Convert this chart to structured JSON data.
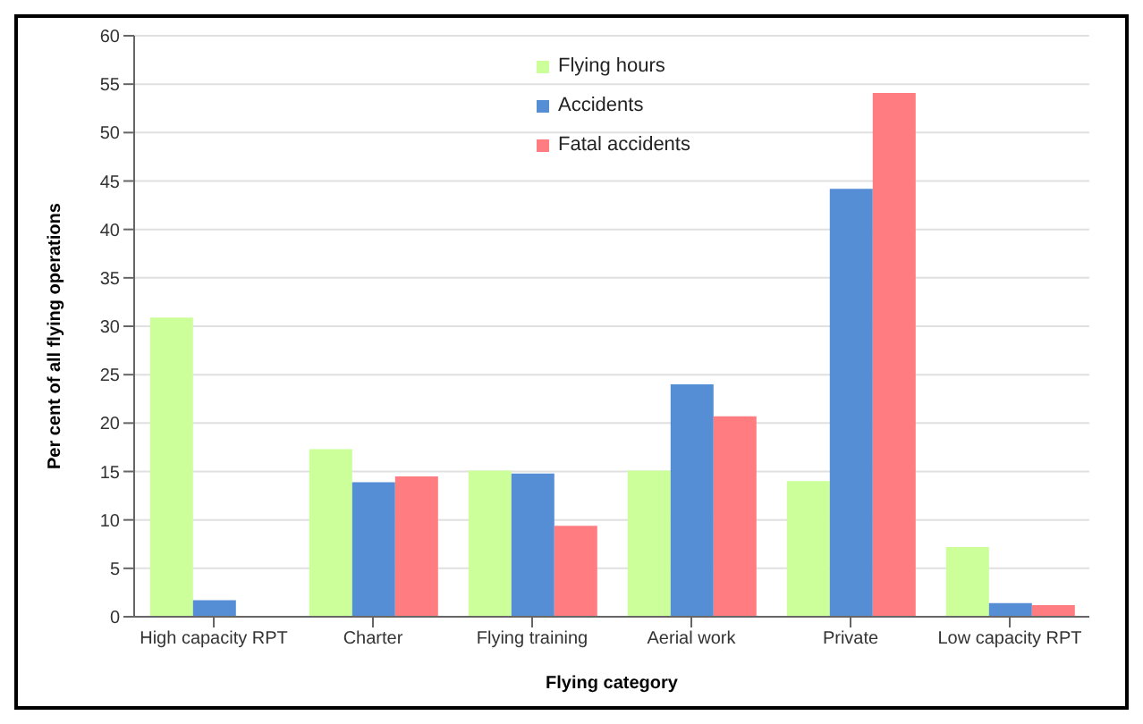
{
  "chart_data": {
    "type": "bar",
    "xlabel": "Flying category",
    "ylabel": "Per cent of all flying operations",
    "categories": [
      "High capacity RPT",
      "Charter",
      "Flying training",
      "Aerial work",
      "Private",
      "Low capacity RPT"
    ],
    "series": [
      {
        "name": "Flying hours",
        "color": "#ccff99",
        "values": [
          30.9,
          17.3,
          15.1,
          15.1,
          14,
          7.2
        ]
      },
      {
        "name": "Accidents",
        "color": "#558ed5",
        "values": [
          1.7,
          13.9,
          14.8,
          24,
          44.2,
          1.4
        ]
      },
      {
        "name": "Fatal accidents",
        "color": "#ff7c80",
        "values": [
          0,
          14.5,
          9.4,
          20.7,
          54.1,
          1.2
        ]
      }
    ],
    "ylim": [
      0,
      60
    ],
    "yticks": [
      0,
      5,
      10,
      15,
      20,
      25,
      30,
      35,
      40,
      45,
      50,
      55,
      60
    ],
    "grid": "y",
    "legend": "top"
  }
}
